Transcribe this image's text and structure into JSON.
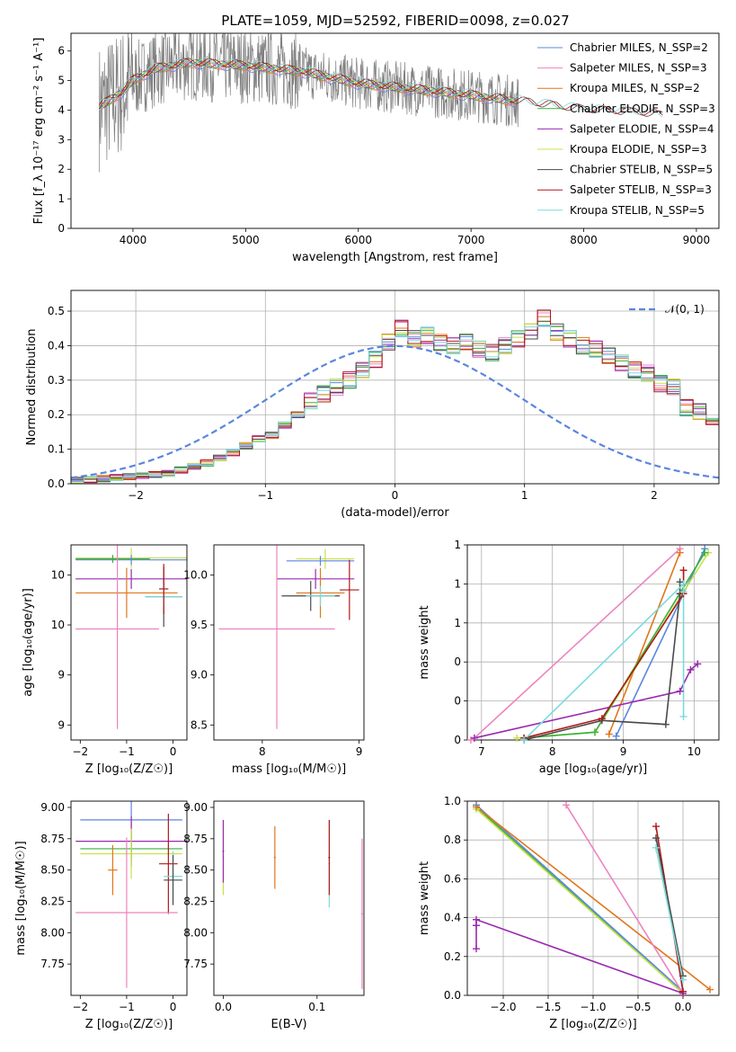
{
  "figure_title": "PLATE=1059, MJD=52592, FIBERID=0098, z=0.027",
  "colors": {
    "chabrier_miles": "#5b86e0",
    "salpeter_miles": "#ec84be",
    "kroupa_miles": "#e0761b",
    "chabrier_elodie": "#38b138",
    "salpeter_elodie": "#9a2ab0",
    "kroupa_elodie": "#c8e04a",
    "chabrier_stelib": "#4a4a4a",
    "salpeter_stelib": "#b01818",
    "kroupa_stelib": "#7cdbdd",
    "data": "#808080",
    "normal_curve": "#5b86e0"
  },
  "chart_data": [
    {
      "type": "line",
      "title": "PLATE=1059, MJD=52592, FIBERID=0098, z=0.027",
      "xlabel": "wavelength [Angstrom, rest frame]",
      "ylabel": "Flux [f_λ 10⁻¹⁷ erg cm⁻² s⁻¹ A⁻¹]",
      "xlim": [
        3450,
        9200
      ],
      "ylim": [
        0,
        6.6
      ],
      "xticks": [
        4000,
        5000,
        6000,
        7000,
        8000,
        9000
      ],
      "yticks": [
        0,
        1,
        2,
        3,
        4,
        5,
        6
      ],
      "legend_position": "top-right",
      "series": [
        {
          "name": "Chabrier MILES, N_SSP=2",
          "color_key": "chabrier_miles"
        },
        {
          "name": "Salpeter MILES, N_SSP=3",
          "color_key": "salpeter_miles"
        },
        {
          "name": "Kroupa MILES, N_SSP=2",
          "color_key": "kroupa_miles"
        },
        {
          "name": "Chabrier ELODIE, N_SSP=3",
          "color_key": "chabrier_elodie"
        },
        {
          "name": "Salpeter ELODIE, N_SSP=4",
          "color_key": "salpeter_elodie"
        },
        {
          "name": "Kroupa ELODIE, N_SSP=3",
          "color_key": "kroupa_elodie"
        },
        {
          "name": "Chabrier STELIB, N_SSP=5",
          "color_key": "chabrier_stelib"
        },
        {
          "name": "Salpeter STELIB, N_SSP=3",
          "color_key": "salpeter_stelib"
        },
        {
          "name": "Kroupa STELIB, N_SSP=5",
          "color_key": "kroupa_stelib"
        }
      ],
      "continuum": {
        "x": [
          3700,
          3900,
          4000,
          4200,
          4500,
          5000,
          5500,
          6000,
          6500,
          7000,
          7400,
          7600,
          8000,
          8500,
          8700
        ],
        "y": [
          4.1,
          4.6,
          5.0,
          5.4,
          5.6,
          5.5,
          5.3,
          4.9,
          4.7,
          4.5,
          4.3,
          4.2,
          4.0,
          3.9,
          3.8
        ]
      }
    },
    {
      "type": "line",
      "xlabel": "(data-model)/error",
      "ylabel": "Normed distribution",
      "xlim": [
        -2.5,
        2.5
      ],
      "ylim": [
        0,
        0.56
      ],
      "xticks": [
        -2,
        -1,
        0,
        1,
        2
      ],
      "yticks": [
        0.0,
        0.1,
        0.2,
        0.3,
        0.4,
        0.5
      ],
      "grid": true,
      "legend_position": "top-right",
      "legend": "𝒩(0, 1)",
      "bin_width": 0.1,
      "histogram_x_start": -2.5,
      "histogram_values": [
        0.01,
        0.012,
        0.015,
        0.018,
        0.02,
        0.024,
        0.027,
        0.03,
        0.04,
        0.05,
        0.06,
        0.075,
        0.09,
        0.11,
        0.13,
        0.14,
        0.17,
        0.2,
        0.24,
        0.26,
        0.28,
        0.3,
        0.33,
        0.36,
        0.41,
        0.45,
        0.42,
        0.43,
        0.41,
        0.4,
        0.41,
        0.39,
        0.38,
        0.4,
        0.42,
        0.44,
        0.48,
        0.44,
        0.42,
        0.4,
        0.39,
        0.37,
        0.35,
        0.33,
        0.32,
        0.29,
        0.28,
        0.22,
        0.21,
        0.18,
        0.17,
        0.14,
        0.13,
        0.11,
        0.09,
        0.08,
        0.07,
        0.06,
        0.055,
        0.05,
        0.045,
        0.035,
        0.03,
        0.027,
        0.023,
        0.02,
        0.018,
        0.016,
        0.015,
        0.013,
        0.012,
        0.011,
        0.01,
        0.009,
        0.008,
        0.007,
        0.006,
        0.005,
        0.004,
        0.003
      ]
    },
    {
      "type": "scatter",
      "xlabel": "Z [log₁₀(Z/Z☉)]",
      "ylabel": "age  [log₁₀(age/yr)]",
      "xlim": [
        -2.2,
        0.3
      ],
      "ylim": [
        8.35,
        10.3
      ],
      "xticks": [
        -2,
        -1,
        0
      ],
      "yticks": [
        8.5,
        9.0,
        9.5,
        10.0
      ],
      "crosses": [
        {
          "x": -0.9,
          "y": 10.17,
          "ex": 1.2,
          "ey": 0.1,
          "color_key": "kroupa_elodie"
        },
        {
          "x": -1.3,
          "y": 10.16,
          "ex": 0.8,
          "ey": 0.04,
          "color_key": "chabrier_elodie"
        },
        {
          "x": -0.9,
          "y": 10.15,
          "ex": 1.2,
          "ey": 0.05,
          "color_key": "chabrier_miles"
        },
        {
          "x": -0.9,
          "y": 9.96,
          "ex": 1.2,
          "ey": 0.1,
          "color_key": "salpeter_elodie"
        },
        {
          "x": -1.0,
          "y": 9.82,
          "ex": 1.1,
          "ey": 0.25,
          "color_key": "kroupa_miles"
        },
        {
          "x": -0.2,
          "y": 9.78,
          "ex": 0.4,
          "ey": 0.3,
          "color_key": "chabrier_stelib"
        },
        {
          "x": -0.2,
          "y": 9.78,
          "ex": 0.4,
          "ey": 0.1,
          "color_key": "kroupa_stelib"
        },
        {
          "x": -1.2,
          "y": 9.46,
          "ex": 0.9,
          "ey": 1.0,
          "color_key": "salpeter_miles"
        },
        {
          "x": -0.2,
          "y": 9.86,
          "ex": 0.1,
          "ey": 0.25,
          "color_key": "salpeter_stelib"
        }
      ]
    },
    {
      "type": "scatter",
      "xlabel": "mass [log₁₀(M/M☉)]",
      "xlim": [
        7.5,
        9.05
      ],
      "ylim": [
        8.35,
        10.3
      ],
      "xticks": [
        8,
        9
      ],
      "yticks": [
        8.5,
        9.0,
        9.5,
        10.0
      ],
      "crosses": [
        {
          "x": 8.65,
          "y": 10.16,
          "ex": 0.3,
          "ey": 0.1,
          "color_key": "kroupa_elodie"
        },
        {
          "x": 8.6,
          "y": 10.14,
          "ex": 0.35,
          "ey": 0.05,
          "color_key": "chabrier_miles"
        },
        {
          "x": 8.55,
          "y": 9.96,
          "ex": 0.4,
          "ey": 0.1,
          "color_key": "salpeter_elodie"
        },
        {
          "x": 8.6,
          "y": 9.82,
          "ex": 0.25,
          "ey": 0.25,
          "color_key": "kroupa_miles"
        },
        {
          "x": 8.5,
          "y": 9.79,
          "ex": 0.3,
          "ey": 0.15,
          "color_key": "chabrier_stelib"
        },
        {
          "x": 8.6,
          "y": 9.79,
          "ex": 0.15,
          "ey": 0.1,
          "color_key": "kroupa_stelib"
        },
        {
          "x": 8.15,
          "y": 9.46,
          "ex": 0.6,
          "ey": 1.0,
          "color_key": "salpeter_miles"
        },
        {
          "x": 8.9,
          "y": 9.85,
          "ex": 0.1,
          "ey": 0.3,
          "color_key": "salpeter_stelib"
        }
      ]
    },
    {
      "type": "line",
      "xlabel": "age  [log₁₀(age/yr)]",
      "ylabel": "mass weight",
      "xlim": [
        6.8,
        10.35
      ],
      "ylim": [
        0,
        1
      ],
      "xticks": [
        7,
        8,
        9,
        10
      ],
      "yticks": [
        0.0,
        0.2,
        0.4,
        0.6,
        0.8,
        1.0
      ],
      "grid": true,
      "series": [
        {
          "color_key": "salpeter_miles",
          "x": [
            6.85,
            6.9,
            9.8
          ],
          "y": [
            0.0,
            0.01,
            0.98
          ]
        },
        {
          "color_key": "kroupa_miles",
          "x": [
            8.8,
            9.8
          ],
          "y": [
            0.03,
            0.96
          ]
        },
        {
          "color_key": "chabrier_miles",
          "x": [
            8.9,
            10.15
          ],
          "y": [
            0.02,
            0.98
          ]
        },
        {
          "color_key": "salpeter_elodie",
          "x": [
            6.9,
            9.8,
            9.95,
            10.05
          ],
          "y": [
            0.01,
            0.25,
            0.36,
            0.39
          ]
        },
        {
          "color_key": "kroupa_elodie",
          "x": [
            7.5,
            8.6,
            10.2
          ],
          "y": [
            0.01,
            0.04,
            0.96
          ]
        },
        {
          "color_key": "chabrier_elodie",
          "x": [
            7.6,
            8.6,
            10.15
          ],
          "y": [
            0.01,
            0.04,
            0.96
          ]
        },
        {
          "color_key": "chabrier_stelib",
          "x": [
            7.6,
            8.7,
            9.6,
            9.8,
            9.8
          ],
          "y": [
            0.0,
            0.1,
            0.08,
            0.75,
            0.81
          ]
        },
        {
          "color_key": "salpeter_stelib",
          "x": [
            7.6,
            8.7,
            9.85,
            9.85
          ],
          "y": [
            0.01,
            0.11,
            0.75,
            0.87
          ]
        },
        {
          "color_key": "kroupa_stelib",
          "x": [
            7.6,
            9.85,
            9.85,
            9.85
          ],
          "y": [
            0.0,
            0.8,
            0.12,
            0.76
          ]
        }
      ]
    },
    {
      "type": "scatter",
      "xlabel": "Z [log₁₀(Z/Z☉)]",
      "ylabel": "mass [log₁₀(M/M☉)]",
      "xlim": [
        -2.2,
        0.3
      ],
      "ylim": [
        7.5,
        9.05
      ],
      "xticks": [
        -2,
        -1,
        0
      ],
      "yticks": [
        7.75,
        8.0,
        8.25,
        8.5,
        8.75,
        9.0
      ],
      "crosses": [
        {
          "x": -0.9,
          "y": 8.9,
          "ex": 1.1,
          "ey": 0.15,
          "color_key": "chabrier_miles"
        },
        {
          "x": -0.9,
          "y": 8.73,
          "ex": 1.2,
          "ey": 0.2,
          "color_key": "salpeter_elodie"
        },
        {
          "x": -0.9,
          "y": 8.67,
          "ex": 1.1,
          "ey": 0.1,
          "color_key": "chabrier_elodie"
        },
        {
          "x": -0.9,
          "y": 8.63,
          "ex": 1.1,
          "ey": 0.2,
          "color_key": "kroupa_elodie"
        },
        {
          "x": -0.1,
          "y": 8.55,
          "ex": 0.2,
          "ey": 0.4,
          "color_key": "salpeter_stelib"
        },
        {
          "x": -0.0,
          "y": 8.45,
          "ex": 0.2,
          "ey": 0.2,
          "color_key": "kroupa_stelib"
        },
        {
          "x": -0.0,
          "y": 8.42,
          "ex": 0.2,
          "ey": 0.2,
          "color_key": "chabrier_stelib"
        },
        {
          "x": -1.0,
          "y": 8.16,
          "ex": 1.1,
          "ey": 0.6,
          "color_key": "salpeter_miles"
        },
        {
          "x": -1.3,
          "y": 8.5,
          "ex": 0.1,
          "ey": 0.2,
          "color_key": "kroupa_miles"
        }
      ]
    },
    {
      "type": "scatter",
      "xlabel": "E(B-V)",
      "xlim": [
        -0.01,
        0.15
      ],
      "ylim": [
        7.5,
        9.05
      ],
      "xticks": [
        0.0,
        0.1
      ],
      "yticks": [
        7.75,
        8.0,
        8.25,
        8.5,
        8.75,
        9.0
      ],
      "crosses": [
        {
          "x": 0.0,
          "y": 8.6,
          "ex": 0.001,
          "ey": 0.3,
          "color_key": "kroupa_elodie"
        },
        {
          "x": 0.0,
          "y": 8.65,
          "ex": 0.001,
          "ey": 0.25,
          "color_key": "salpeter_elodie"
        },
        {
          "x": 0.055,
          "y": 8.6,
          "ex": 0.001,
          "ey": 0.25,
          "color_key": "kroupa_miles"
        },
        {
          "x": 0.113,
          "y": 8.55,
          "ex": 0.001,
          "ey": 0.35,
          "color_key": "kroupa_stelib"
        },
        {
          "x": 0.113,
          "y": 8.6,
          "ex": 0.001,
          "ey": 0.3,
          "color_key": "salpeter_stelib"
        },
        {
          "x": 0.148,
          "y": 8.15,
          "ex": 0.001,
          "ey": 0.6,
          "color_key": "salpeter_miles"
        }
      ]
    },
    {
      "type": "line",
      "xlabel": "Z [log₁₀(Z/Z☉)]",
      "ylabel": "mass weight",
      "xlim": [
        -2.4,
        0.4
      ],
      "ylim": [
        0,
        1
      ],
      "xticks": [
        -2.0,
        -1.5,
        -1.0,
        -0.5,
        0.0
      ],
      "yticks": [
        0.0,
        0.2,
        0.4,
        0.6,
        0.8,
        1.0
      ],
      "grid": true,
      "series": [
        {
          "color_key": "chabrier_miles",
          "x": [
            -2.3,
            0.0
          ],
          "y": [
            0.98,
            0.02
          ]
        },
        {
          "color_key": "chabrier_elodie",
          "x": [
            -2.3,
            0.0
          ],
          "y": [
            0.97,
            0.01
          ]
        },
        {
          "color_key": "kroupa_elodie",
          "x": [
            -2.3,
            0.0
          ],
          "y": [
            0.96,
            0.01
          ]
        },
        {
          "color_key": "kroupa_miles",
          "x": [
            -2.3,
            0.3
          ],
          "y": [
            0.97,
            0.03
          ]
        },
        {
          "color_key": "salpeter_miles",
          "x": [
            -1.3,
            0.0
          ],
          "y": [
            0.98,
            0.01
          ]
        },
        {
          "color_key": "salpeter_elodie",
          "x": [
            -2.3,
            -2.3,
            -2.3,
            0.0
          ],
          "y": [
            0.24,
            0.36,
            0.39,
            0.01
          ]
        },
        {
          "color_key": "salpeter_stelib",
          "x": [
            -0.3,
            0.0
          ],
          "y": [
            0.87,
            0.02
          ]
        },
        {
          "color_key": "chabrier_stelib",
          "x": [
            -0.3,
            0.0
          ],
          "y": [
            0.81,
            0.1
          ]
        },
        {
          "color_key": "kroupa_stelib",
          "x": [
            -0.3,
            0.0
          ],
          "y": [
            0.76,
            0.08
          ]
        }
      ]
    }
  ]
}
